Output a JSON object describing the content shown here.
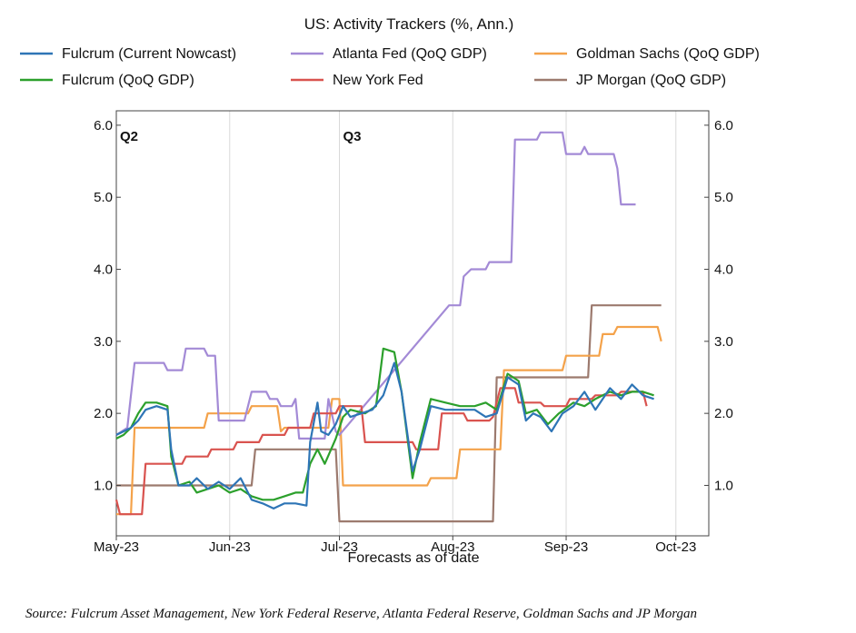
{
  "chart_data": {
    "type": "line",
    "title": "US: Activity Trackers (%, Ann.)",
    "xlabel": "Forecasts as of date",
    "ylabel": "",
    "x_ticks": [
      {
        "label": "May-23",
        "date": "2023-05-01"
      },
      {
        "label": "Jun-23",
        "date": "2023-06-01"
      },
      {
        "label": "Jul-23",
        "date": "2023-07-01"
      },
      {
        "label": "Aug-23",
        "date": "2023-08-01"
      },
      {
        "label": "Sep-23",
        "date": "2023-09-01"
      },
      {
        "label": "Oct-23",
        "date": "2023-10-01"
      }
    ],
    "xlim": [
      "2023-05-01",
      "2023-10-10"
    ],
    "ylim": [
      0.3,
      6.2
    ],
    "y_ticks": [
      "1.0",
      "2.0",
      "3.0",
      "4.0",
      "5.0",
      "6.0"
    ],
    "y_tick_values": [
      1.0,
      2.0,
      3.0,
      4.0,
      5.0,
      6.0
    ],
    "grid": "vertical",
    "legend_position": "top",
    "annotations": [
      {
        "text": "Q2",
        "date": "2023-05-01",
        "y": 5.85
      },
      {
        "text": "Q3",
        "date": "2023-07-01",
        "y": 5.85
      }
    ],
    "series": [
      {
        "name": "Fulcrum (Current Nowcast)",
        "color": "#2e75b6",
        "points": [
          [
            "2023-05-01",
            1.7
          ],
          [
            "2023-05-03",
            1.75
          ],
          [
            "2023-05-05",
            1.8
          ],
          [
            "2023-05-07",
            1.9
          ],
          [
            "2023-05-09",
            2.05
          ],
          [
            "2023-05-12",
            2.1
          ],
          [
            "2023-05-15",
            2.05
          ],
          [
            "2023-05-16",
            1.5
          ],
          [
            "2023-05-18",
            1.0
          ],
          [
            "2023-05-21",
            1.0
          ],
          [
            "2023-05-23",
            1.1
          ],
          [
            "2023-05-26",
            0.95
          ],
          [
            "2023-05-29",
            1.05
          ],
          [
            "2023-06-01",
            0.95
          ],
          [
            "2023-06-04",
            1.1
          ],
          [
            "2023-06-07",
            0.8
          ],
          [
            "2023-06-10",
            0.75
          ],
          [
            "2023-06-13",
            0.68
          ],
          [
            "2023-06-16",
            0.75
          ],
          [
            "2023-06-19",
            0.75
          ],
          [
            "2023-06-22",
            0.72
          ],
          [
            "2023-06-23",
            1.6
          ],
          [
            "2023-06-25",
            2.15
          ],
          [
            "2023-06-26",
            1.75
          ],
          [
            "2023-06-28",
            1.7
          ],
          [
            "2023-06-30",
            1.85
          ],
          [
            "2023-07-02",
            2.1
          ],
          [
            "2023-07-04",
            1.95
          ],
          [
            "2023-07-07",
            2.0
          ],
          [
            "2023-07-10",
            2.05
          ],
          [
            "2023-07-13",
            2.25
          ],
          [
            "2023-07-16",
            2.7
          ],
          [
            "2023-07-18",
            2.3
          ],
          [
            "2023-07-21",
            1.2
          ],
          [
            "2023-07-23",
            1.5
          ],
          [
            "2023-07-26",
            2.1
          ],
          [
            "2023-07-30",
            2.05
          ],
          [
            "2023-08-03",
            2.05
          ],
          [
            "2023-08-07",
            2.05
          ],
          [
            "2023-08-10",
            1.95
          ],
          [
            "2023-08-13",
            2.0
          ],
          [
            "2023-08-16",
            2.5
          ],
          [
            "2023-08-19",
            2.4
          ],
          [
            "2023-08-21",
            1.9
          ],
          [
            "2023-08-23",
            2.0
          ],
          [
            "2023-08-25",
            1.95
          ],
          [
            "2023-08-28",
            1.75
          ],
          [
            "2023-08-31",
            2.0
          ],
          [
            "2023-09-03",
            2.1
          ],
          [
            "2023-09-06",
            2.3
          ],
          [
            "2023-09-09",
            2.05
          ],
          [
            "2023-09-13",
            2.35
          ],
          [
            "2023-09-16",
            2.2
          ],
          [
            "2023-09-19",
            2.4
          ],
          [
            "2023-09-22",
            2.25
          ],
          [
            "2023-09-25",
            2.2
          ]
        ]
      },
      {
        "name": "Fulcrum (QoQ GDP)",
        "color": "#2ca02c",
        "points": [
          [
            "2023-05-01",
            1.65
          ],
          [
            "2023-05-03",
            1.7
          ],
          [
            "2023-05-05",
            1.8
          ],
          [
            "2023-05-07",
            2.0
          ],
          [
            "2023-05-09",
            2.15
          ],
          [
            "2023-05-12",
            2.15
          ],
          [
            "2023-05-15",
            2.1
          ],
          [
            "2023-05-16",
            1.4
          ],
          [
            "2023-05-18",
            1.0
          ],
          [
            "2023-05-21",
            1.05
          ],
          [
            "2023-05-23",
            0.9
          ],
          [
            "2023-05-26",
            0.95
          ],
          [
            "2023-05-29",
            1.0
          ],
          [
            "2023-06-01",
            0.9
          ],
          [
            "2023-06-04",
            0.95
          ],
          [
            "2023-06-07",
            0.85
          ],
          [
            "2023-06-10",
            0.8
          ],
          [
            "2023-06-13",
            0.8
          ],
          [
            "2023-06-16",
            0.85
          ],
          [
            "2023-06-19",
            0.9
          ],
          [
            "2023-06-21",
            0.9
          ],
          [
            "2023-06-23",
            1.3
          ],
          [
            "2023-06-25",
            1.5
          ],
          [
            "2023-06-27",
            1.3
          ],
          [
            "2023-06-30",
            1.65
          ],
          [
            "2023-07-02",
            1.95
          ],
          [
            "2023-07-04",
            2.05
          ],
          [
            "2023-07-08",
            2.0
          ],
          [
            "2023-07-11",
            2.1
          ],
          [
            "2023-07-13",
            2.9
          ],
          [
            "2023-07-16",
            2.85
          ],
          [
            "2023-07-18",
            2.3
          ],
          [
            "2023-07-21",
            1.1
          ],
          [
            "2023-07-23",
            1.6
          ],
          [
            "2023-07-26",
            2.2
          ],
          [
            "2023-07-30",
            2.15
          ],
          [
            "2023-08-03",
            2.1
          ],
          [
            "2023-08-07",
            2.1
          ],
          [
            "2023-08-10",
            2.15
          ],
          [
            "2023-08-13",
            2.05
          ],
          [
            "2023-08-16",
            2.55
          ],
          [
            "2023-08-19",
            2.45
          ],
          [
            "2023-08-21",
            2.0
          ],
          [
            "2023-08-24",
            2.05
          ],
          [
            "2023-08-27",
            1.85
          ],
          [
            "2023-08-30",
            2.0
          ],
          [
            "2023-09-03",
            2.15
          ],
          [
            "2023-09-06",
            2.1
          ],
          [
            "2023-09-09",
            2.2
          ],
          [
            "2023-09-13",
            2.3
          ],
          [
            "2023-09-16",
            2.25
          ],
          [
            "2023-09-19",
            2.3
          ],
          [
            "2023-09-22",
            2.3
          ],
          [
            "2023-09-25",
            2.25
          ]
        ]
      },
      {
        "name": "Atlanta Fed (QoQ GDP)",
        "color": "#a38ad6",
        "points": [
          [
            "2023-05-01",
            1.7
          ],
          [
            "2023-05-04",
            1.8
          ],
          [
            "2023-05-06",
            2.7
          ],
          [
            "2023-05-14",
            2.7
          ],
          [
            "2023-05-15",
            2.6
          ],
          [
            "2023-05-19",
            2.6
          ],
          [
            "2023-05-20",
            2.9
          ],
          [
            "2023-05-25",
            2.9
          ],
          [
            "2023-05-26",
            2.8
          ],
          [
            "2023-05-28",
            2.8
          ],
          [
            "2023-05-29",
            1.9
          ],
          [
            "2023-06-05",
            1.9
          ],
          [
            "2023-06-07",
            2.3
          ],
          [
            "2023-06-11",
            2.3
          ],
          [
            "2023-06-12",
            2.2
          ],
          [
            "2023-06-14",
            2.2
          ],
          [
            "2023-06-15",
            2.1
          ],
          [
            "2023-06-18",
            2.1
          ],
          [
            "2023-06-19",
            2.2
          ],
          [
            "2023-06-20",
            1.65
          ],
          [
            "2023-06-27",
            1.65
          ],
          [
            "2023-06-28",
            2.2
          ],
          [
            "2023-06-30",
            1.75
          ],
          [
            "2023-07-01",
            1.7
          ],
          [
            "2023-07-31",
            3.5
          ],
          [
            "2023-08-03",
            3.5
          ],
          [
            "2023-08-04",
            3.9
          ],
          [
            "2023-08-06",
            4.0
          ],
          [
            "2023-08-10",
            4.0
          ],
          [
            "2023-08-11",
            4.1
          ],
          [
            "2023-08-17",
            4.1
          ],
          [
            "2023-08-18",
            5.8
          ],
          [
            "2023-08-24",
            5.8
          ],
          [
            "2023-08-25",
            5.9
          ],
          [
            "2023-08-31",
            5.9
          ],
          [
            "2023-09-01",
            5.6
          ],
          [
            "2023-09-05",
            5.6
          ],
          [
            "2023-09-06",
            5.7
          ],
          [
            "2023-09-07",
            5.6
          ],
          [
            "2023-09-14",
            5.6
          ],
          [
            "2023-09-15",
            5.4
          ],
          [
            "2023-09-16",
            4.9
          ],
          [
            "2023-09-20",
            4.9
          ]
        ]
      },
      {
        "name": "New York Fed",
        "color": "#d9534f",
        "points": [
          [
            "2023-05-01",
            0.8
          ],
          [
            "2023-05-02",
            0.6
          ],
          [
            "2023-05-08",
            0.6
          ],
          [
            "2023-05-09",
            1.3
          ],
          [
            "2023-05-19",
            1.3
          ],
          [
            "2023-05-20",
            1.4
          ],
          [
            "2023-05-26",
            1.4
          ],
          [
            "2023-05-27",
            1.5
          ],
          [
            "2023-06-02",
            1.5
          ],
          [
            "2023-06-03",
            1.6
          ],
          [
            "2023-06-09",
            1.6
          ],
          [
            "2023-06-10",
            1.7
          ],
          [
            "2023-06-16",
            1.7
          ],
          [
            "2023-06-17",
            1.8
          ],
          [
            "2023-06-23",
            1.8
          ],
          [
            "2023-06-24",
            2.0
          ],
          [
            "2023-06-30",
            2.0
          ],
          [
            "2023-07-01",
            2.1
          ],
          [
            "2023-07-07",
            2.1
          ],
          [
            "2023-07-08",
            1.6
          ],
          [
            "2023-07-21",
            1.6
          ],
          [
            "2023-07-22",
            1.5
          ],
          [
            "2023-07-28",
            1.5
          ],
          [
            "2023-07-29",
            2.0
          ],
          [
            "2023-08-04",
            2.0
          ],
          [
            "2023-08-05",
            1.9
          ],
          [
            "2023-08-11",
            1.9
          ],
          [
            "2023-08-12",
            1.95
          ],
          [
            "2023-08-14",
            2.35
          ],
          [
            "2023-08-18",
            2.35
          ],
          [
            "2023-08-19",
            2.15
          ],
          [
            "2023-08-25",
            2.15
          ],
          [
            "2023-08-26",
            2.1
          ],
          [
            "2023-09-01",
            2.1
          ],
          [
            "2023-09-02",
            2.2
          ],
          [
            "2023-09-08",
            2.2
          ],
          [
            "2023-09-09",
            2.25
          ],
          [
            "2023-09-15",
            2.25
          ],
          [
            "2023-09-16",
            2.3
          ],
          [
            "2023-09-22",
            2.3
          ],
          [
            "2023-09-23",
            2.1
          ]
        ]
      },
      {
        "name": "Goldman Sachs (QoQ GDP)",
        "color": "#f4a24a",
        "points": [
          [
            "2023-05-01",
            0.6
          ],
          [
            "2023-05-05",
            0.6
          ],
          [
            "2023-05-06",
            1.8
          ],
          [
            "2023-05-25",
            1.8
          ],
          [
            "2023-05-26",
            2.0
          ],
          [
            "2023-06-06",
            2.0
          ],
          [
            "2023-06-07",
            2.1
          ],
          [
            "2023-06-14",
            2.1
          ],
          [
            "2023-06-15",
            1.75
          ],
          [
            "2023-06-16",
            1.8
          ],
          [
            "2023-06-28",
            1.8
          ],
          [
            "2023-06-29",
            2.2
          ],
          [
            "2023-07-01",
            2.2
          ],
          [
            "2023-07-02",
            1.0
          ],
          [
            "2023-07-25",
            1.0
          ],
          [
            "2023-07-26",
            1.1
          ],
          [
            "2023-08-02",
            1.1
          ],
          [
            "2023-08-03",
            1.5
          ],
          [
            "2023-08-14",
            1.5
          ],
          [
            "2023-08-15",
            2.6
          ],
          [
            "2023-08-31",
            2.6
          ],
          [
            "2023-09-01",
            2.8
          ],
          [
            "2023-09-10",
            2.8
          ],
          [
            "2023-09-11",
            3.1
          ],
          [
            "2023-09-14",
            3.1
          ],
          [
            "2023-09-15",
            3.2
          ],
          [
            "2023-09-26",
            3.2
          ],
          [
            "2023-09-27",
            3.0
          ]
        ]
      },
      {
        "name": "JP Morgan (QoQ GDP)",
        "color": "#9c7a6e",
        "points": [
          [
            "2023-05-01",
            1.0
          ],
          [
            "2023-06-07",
            1.0
          ],
          [
            "2023-06-08",
            1.5
          ],
          [
            "2023-06-30",
            1.5
          ],
          [
            "2023-07-01",
            0.5
          ],
          [
            "2023-08-12",
            0.5
          ],
          [
            "2023-08-13",
            2.5
          ],
          [
            "2023-09-07",
            2.5
          ],
          [
            "2023-09-08",
            3.5
          ],
          [
            "2023-09-27",
            3.5
          ]
        ]
      }
    ]
  },
  "legend": [
    {
      "label": "Fulcrum (Current Nowcast)",
      "color": "#2e75b6"
    },
    {
      "label": "Atlanta Fed (QoQ GDP)",
      "color": "#a38ad6"
    },
    {
      "label": "Goldman Sachs (QoQ GDP)",
      "color": "#f4a24a"
    },
    {
      "label": "Fulcrum (QoQ GDP)",
      "color": "#2ca02c"
    },
    {
      "label": "New York Fed",
      "color": "#d9534f"
    },
    {
      "label": "JP Morgan (QoQ GDP)",
      "color": "#9c7a6e"
    }
  ],
  "source": "Source: Fulcrum Asset Management, New York Federal Reserve, Atlanta Federal Reserve, Goldman Sachs and JP Morgan"
}
